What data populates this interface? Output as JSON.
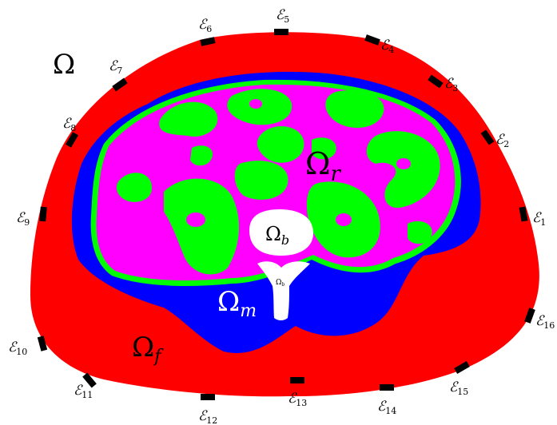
{
  "colors": {
    "fat": "#ff0000",
    "muscle": "#0000ff",
    "organs": "#ff00ff",
    "bowel": "#00ff00",
    "bone": "#ffffff",
    "electrode": "#000000",
    "background": "#ffffff"
  },
  "regions": {
    "domain": "Ω",
    "fat": {
      "base": "Ω",
      "sub": "f"
    },
    "muscle": {
      "base": "Ω",
      "sub": "m"
    },
    "rest": {
      "base": "Ω",
      "sub": "r"
    },
    "bone": {
      "base": "Ω",
      "sub": "b"
    },
    "bone_small": {
      "base": "Ω",
      "sub": "b"
    }
  },
  "electrodes": [
    {
      "symbol": "ℰ",
      "index": "1"
    },
    {
      "symbol": "ℰ",
      "index": "2"
    },
    {
      "symbol": "ℰ",
      "index": "3"
    },
    {
      "symbol": "ℰ",
      "index": "4"
    },
    {
      "symbol": "ℰ",
      "index": "5"
    },
    {
      "symbol": "ℰ",
      "index": "6"
    },
    {
      "symbol": "ℰ",
      "index": "7"
    },
    {
      "symbol": "ℰ",
      "index": "8"
    },
    {
      "symbol": "ℰ",
      "index": "9"
    },
    {
      "symbol": "ℰ",
      "index": "10"
    },
    {
      "symbol": "ℰ",
      "index": "11"
    },
    {
      "symbol": "ℰ",
      "index": "12"
    },
    {
      "symbol": "ℰ",
      "index": "13"
    },
    {
      "symbol": "ℰ",
      "index": "14"
    },
    {
      "symbol": "ℰ",
      "index": "15"
    },
    {
      "symbol": "ℰ",
      "index": "16"
    }
  ]
}
